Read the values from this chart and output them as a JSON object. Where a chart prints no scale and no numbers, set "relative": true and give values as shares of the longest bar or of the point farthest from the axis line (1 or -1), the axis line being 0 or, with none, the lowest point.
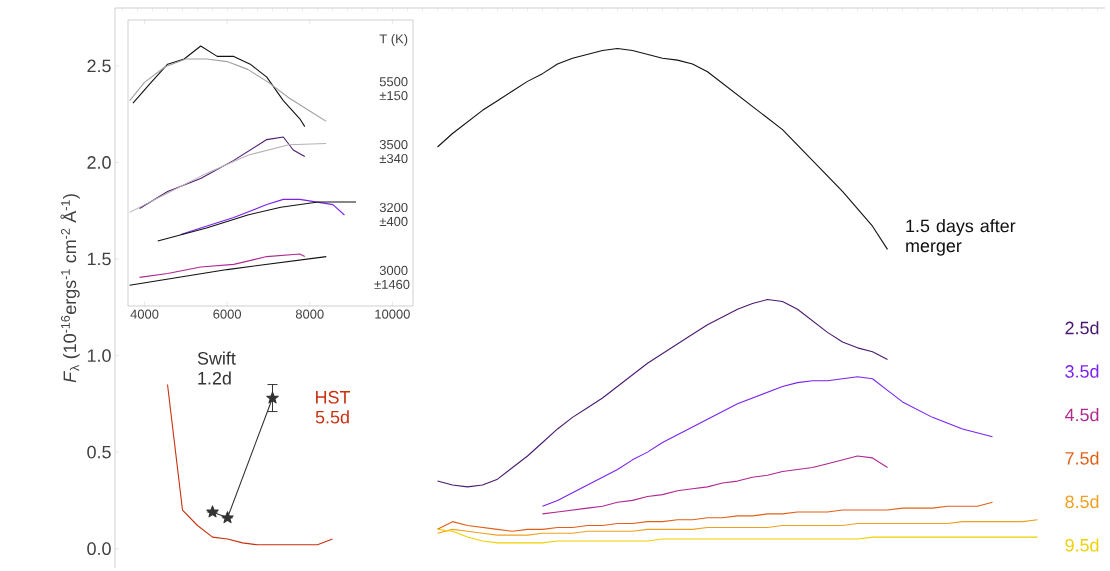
{
  "chart_data": [
    {
      "type": "line",
      "relative": true,
      "xlim": [
        3600,
        10500
      ],
      "xticks": [
        4000,
        6000,
        8000,
        10000
      ],
      "tick_labels": "x",
      "annotations": [
        "T (K)"
      ],
      "series": [
        {
          "color": "#111111",
          "x": [
            3720,
            4160,
            4560,
            4960,
            5360,
            5760,
            6160,
            6560,
            6960,
            7360,
            7760,
            7880
          ],
          "values": [
            0.78,
            0.86,
            0.93,
            0.95,
            1.0,
            0.96,
            0.96,
            0.93,
            0.88,
            0.79,
            0.72,
            0.69
          ]
        },
        {
          "color": "#4a1a70",
          "x": [
            3880,
            4560,
            5360,
            6160,
            6960,
            7360,
            7600,
            7880
          ],
          "values": [
            0.375,
            0.44,
            0.49,
            0.56,
            0.64,
            0.65,
            0.6,
            0.575
          ]
        },
        {
          "color": "#7a22f0",
          "x": [
            4880,
            5360,
            6160,
            6960,
            7360,
            7760,
            8560,
            8840
          ],
          "values": [
            0.275,
            0.3,
            0.34,
            0.39,
            0.41,
            0.41,
            0.39,
            0.35
          ]
        },
        {
          "color": "#b02890",
          "x": [
            3880,
            4560,
            5360,
            6160,
            6960,
            7760,
            7880
          ],
          "values": [
            0.11,
            0.125,
            0.15,
            0.16,
            0.19,
            0.2,
            0.19
          ]
        },
        {
          "name": "5500 ±150",
          "color": "#a0a0a0",
          "x": [
            3640,
            4000,
            4500,
            5000,
            5500,
            6000,
            6500,
            7000,
            7500,
            8000,
            8400
          ],
          "values": [
            0.79,
            0.86,
            0.92,
            0.95,
            0.95,
            0.94,
            0.91,
            0.86,
            0.8,
            0.75,
            0.71
          ]
        },
        {
          "name": "3500 ±340",
          "color": "#b8b0b8",
          "x": [
            3640,
            4500,
            5500,
            6500,
            7500,
            8400
          ],
          "values": [
            0.36,
            0.43,
            0.51,
            0.58,
            0.62,
            0.625
          ]
        },
        {
          "name": "3200 ±400",
          "color": "#111111",
          "x": [
            4320,
            5500,
            6500,
            7300,
            8200,
            9120
          ],
          "values": [
            0.25,
            0.3,
            0.35,
            0.38,
            0.4,
            0.4
          ]
        },
        {
          "name": "3000 ±1460",
          "color": "#111111",
          "x": [
            3640,
            6000,
            8400
          ],
          "values": [
            0.08,
            0.14,
            0.19
          ]
        }
      ]
    },
    {
      "type": "line",
      "ylabel": "*F*$_{λ}$ (10$^{-16}$ergs$^{-1}$ cm$^{-2}$ Å$^{-1}$)",
      "categories": [
        null,
        null,
        null,
        null,
        null,
        null,
        null,
        null,
        null,
        null,
        null,
        null,
        null,
        null,
        null,
        null,
        null,
        null,
        null,
        null,
        null,
        null,
        null,
        null,
        null,
        null,
        null,
        null,
        null,
        null,
        null,
        null,
        null,
        null,
        null,
        null,
        null,
        null,
        null,
        null,
        null,
        null,
        null,
        null,
        null,
        null,
        null,
        null,
        null,
        null,
        null,
        null,
        null,
        null,
        null,
        null,
        null,
        null,
        null,
        null,
        null,
        null,
        null,
        null,
        null,
        null
      ],
      "ylim": [
        -0.1,
        2.8
      ],
      "yticks": [
        {
          "value": 0,
          "label": "0.0"
        },
        0.5,
        {
          "value": 1,
          "label": "1.0"
        },
        1.5,
        {
          "value": 2,
          "label": "2.0"
        },
        2.5
      ],
      "tick_labels": "y",
      "series": [
        {
          "name": "1.5 days after merger",
          "color": "#111111",
          "values": [
            null,
            null,
            null,
            null,
            null,
            null,
            null,
            null,
            null,
            null,
            null,
            null,
            null,
            null,
            null,
            null,
            null,
            null,
            null,
            null,
            null,
            2.08,
            2.15,
            2.21,
            2.27,
            2.32,
            2.37,
            2.42,
            2.46,
            2.51,
            2.54,
            2.56,
            2.58,
            2.59,
            2.58,
            2.56,
            2.54,
            2.53,
            2.51,
            2.47,
            2.41,
            2.35,
            2.29,
            2.23,
            2.17,
            2.09,
            2.01,
            1.93,
            1.85,
            1.76,
            1.67,
            1.55,
            null,
            null,
            null,
            null,
            null,
            null,
            null,
            null,
            null,
            null,
            null,
            null,
            null,
            null
          ]
        },
        {
          "name": "2.5d",
          "color": "#4a1a70",
          "values": [
            null,
            null,
            null,
            null,
            null,
            null,
            null,
            null,
            null,
            null,
            null,
            null,
            null,
            null,
            null,
            null,
            null,
            null,
            null,
            null,
            null,
            0.35,
            0.33,
            0.32,
            0.33,
            0.36,
            0.42,
            0.48,
            0.55,
            0.62,
            0.68,
            0.73,
            0.78,
            0.84,
            0.9,
            0.96,
            1.01,
            1.06,
            1.11,
            1.16,
            1.2,
            1.24,
            1.27,
            1.29,
            1.28,
            1.24,
            1.18,
            1.12,
            1.07,
            1.04,
            1.02,
            0.98,
            null,
            null,
            null,
            null,
            null,
            null,
            null,
            null,
            null,
            null,
            null,
            null,
            null,
            null
          ]
        },
        {
          "name": "3.5d",
          "color": "#7a22f0",
          "values": [
            null,
            null,
            null,
            null,
            null,
            null,
            null,
            null,
            null,
            null,
            null,
            null,
            null,
            null,
            null,
            null,
            null,
            null,
            null,
            null,
            null,
            null,
            null,
            null,
            null,
            null,
            null,
            null,
            0.22,
            0.25,
            0.29,
            0.33,
            0.37,
            0.41,
            0.46,
            0.5,
            0.55,
            0.59,
            0.63,
            0.67,
            0.71,
            0.75,
            0.78,
            0.81,
            0.84,
            0.86,
            0.87,
            0.87,
            0.88,
            0.89,
            0.88,
            0.82,
            0.76,
            0.72,
            0.68,
            0.65,
            0.62,
            0.6,
            0.58,
            null,
            null,
            null,
            null,
            null,
            null,
            null
          ]
        },
        {
          "name": "4.5d",
          "color": "#b02890",
          "values": [
            null,
            null,
            null,
            null,
            null,
            null,
            null,
            null,
            null,
            null,
            null,
            null,
            null,
            null,
            null,
            null,
            null,
            null,
            null,
            null,
            null,
            null,
            null,
            null,
            null,
            null,
            null,
            null,
            0.18,
            0.19,
            0.2,
            0.21,
            0.22,
            0.24,
            0.25,
            0.27,
            0.28,
            0.3,
            0.31,
            0.32,
            0.34,
            0.35,
            0.37,
            0.38,
            0.4,
            0.41,
            0.42,
            0.44,
            0.46,
            0.48,
            0.47,
            0.42,
            null,
            null,
            null,
            null,
            null,
            null,
            null,
            null,
            null,
            null,
            null,
            null,
            null,
            null
          ]
        },
        {
          "name": "7.5d",
          "color": "#e06018",
          "values": [
            null,
            null,
            null,
            null,
            null,
            null,
            null,
            null,
            null,
            null,
            null,
            null,
            null,
            null,
            null,
            null,
            null,
            null,
            null,
            null,
            null,
            0.1,
            0.14,
            0.12,
            0.11,
            0.1,
            0.09,
            0.1,
            0.1,
            0.11,
            0.11,
            0.12,
            0.12,
            0.13,
            0.13,
            0.14,
            0.14,
            0.15,
            0.15,
            0.16,
            0.16,
            0.17,
            0.17,
            0.18,
            0.18,
            0.19,
            0.19,
            0.19,
            0.2,
            0.2,
            0.2,
            0.2,
            0.21,
            0.21,
            0.21,
            0.22,
            0.22,
            0.22,
            0.24,
            null,
            null,
            null,
            null,
            null,
            null,
            null
          ]
        },
        {
          "name": "8.5d",
          "color": "#f0a020",
          "values": [
            null,
            null,
            null,
            null,
            null,
            null,
            null,
            null,
            null,
            null,
            null,
            null,
            null,
            null,
            null,
            null,
            null,
            null,
            null,
            null,
            null,
            0.08,
            0.1,
            0.09,
            0.08,
            0.07,
            0.07,
            0.07,
            0.08,
            0.08,
            0.08,
            0.09,
            0.09,
            0.09,
            0.09,
            0.1,
            0.1,
            0.1,
            0.1,
            0.11,
            0.11,
            0.11,
            0.11,
            0.11,
            0.12,
            0.12,
            0.12,
            0.12,
            0.12,
            0.13,
            0.13,
            0.13,
            0.13,
            0.13,
            0.13,
            0.13,
            0.14,
            0.14,
            0.14,
            0.14,
            0.14,
            0.15,
            null,
            null,
            null,
            null
          ]
        },
        {
          "name": "9.5d",
          "color": "#f0d000",
          "values": [
            null,
            null,
            null,
            null,
            null,
            null,
            null,
            null,
            null,
            null,
            null,
            null,
            null,
            null,
            null,
            null,
            null,
            null,
            null,
            null,
            null,
            0.1,
            0.09,
            0.06,
            0.04,
            0.03,
            0.03,
            0.03,
            0.03,
            0.04,
            0.04,
            0.04,
            0.04,
            0.04,
            0.04,
            0.04,
            0.05,
            0.05,
            0.05,
            0.05,
            0.05,
            0.05,
            0.05,
            0.05,
            0.05,
            0.05,
            0.05,
            0.05,
            0.05,
            0.05,
            0.06,
            0.06,
            0.06,
            0.06,
            0.06,
            0.06,
            0.06,
            0.06,
            0.06,
            0.06,
            0.06,
            0.06,
            null,
            null,
            null,
            null
          ]
        },
        {
          "name": "HST 5.5d",
          "color": "#c83010",
          "values": [
            null,
            null,
            null,
            0.85,
            0.2,
            0.12,
            0.06,
            0.05,
            0.03,
            0.02,
            0.02,
            0.02,
            0.02,
            0.02,
            0.05,
            null,
            null,
            null,
            null,
            null,
            null,
            null,
            null,
            null,
            null,
            null,
            null,
            null,
            null,
            null,
            null,
            null,
            null,
            null,
            null,
            null,
            null,
            null,
            null,
            null,
            null,
            null,
            null,
            null,
            null,
            null,
            null,
            null,
            null,
            null,
            null,
            null,
            null,
            null,
            null,
            null,
            null,
            null,
            null,
            null,
            null,
            null,
            null,
            null,
            null,
            null
          ]
        },
        {
          "name": "Swift 1.2d",
          "color": "#333333",
          "marker": "star",
          "values": [
            null,
            null,
            null,
            null,
            null,
            null,
            0.19,
            0.16,
            null,
            null,
            0.78,
            null,
            null,
            null,
            null,
            null,
            null,
            null,
            null,
            null,
            null,
            null,
            null,
            null,
            null,
            null,
            null,
            null,
            null,
            null,
            null,
            null,
            null,
            null,
            null,
            null,
            null,
            null,
            null,
            null,
            null,
            null,
            null,
            null,
            null,
            null,
            null,
            null,
            null,
            null,
            null,
            null,
            null,
            null,
            null,
            null,
            null,
            null,
            null,
            null,
            null,
            null,
            null,
            null,
            null,
            null
          ],
          "errors": [
            null,
            null,
            null,
            null,
            null,
            null,
            null,
            null,
            null,
            null,
            0.07,
            null,
            null,
            null,
            null,
            null,
            null,
            null,
            null,
            null,
            null,
            null,
            null,
            null,
            null,
            null,
            null,
            null,
            null,
            null,
            null,
            null,
            null,
            null,
            null,
            null,
            null,
            null,
            null,
            null,
            null,
            null,
            null,
            null,
            null,
            null,
            null,
            null,
            null,
            null,
            null,
            null,
            null,
            null,
            null,
            null,
            null,
            null,
            null,
            null,
            null,
            null,
            null,
            null,
            null,
            null
          ]
        }
      ]
    }
  ]
}
